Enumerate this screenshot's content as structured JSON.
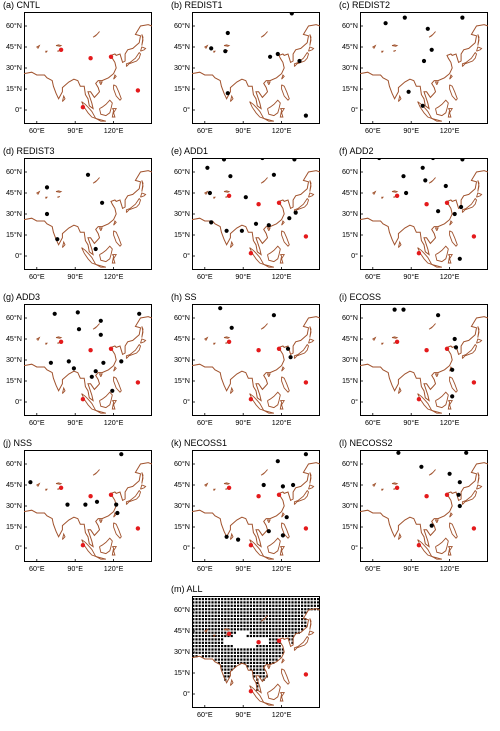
{
  "axes": {
    "lat_labels": [
      "60°N",
      "45°N",
      "30°N",
      "15°N",
      "0°"
    ],
    "lon_labels": [
      "60°E",
      "90°E",
      "120°E"
    ]
  },
  "colors": {
    "coast": "#a0522d",
    "red_station": "#e41a1c",
    "black_station": "#000000",
    "grid_marker": "#000000"
  },
  "red_stations": [
    [
      79,
      43
    ],
    [
      102,
      37
    ],
    [
      118,
      38
    ],
    [
      139,
      14
    ],
    [
      96,
      2
    ]
  ],
  "panels": [
    {
      "id": "a",
      "label": "(a) CNTL",
      "black": [],
      "red": true
    },
    {
      "id": "b",
      "label": "(b) REDIST1",
      "black": [
        [
          128,
          69
        ],
        [
          78,
          55
        ],
        [
          65,
          44
        ],
        [
          76,
          42
        ],
        [
          111,
          38
        ],
        [
          117,
          40
        ],
        [
          134,
          35
        ],
        [
          78,
          12
        ],
        [
          139,
          -4
        ]
      ],
      "red": false
    },
    {
      "id": "c",
      "label": "(c) REDIST2",
      "black": [
        [
          70,
          62
        ],
        [
          85,
          66
        ],
        [
          130,
          66
        ],
        [
          103,
          58
        ],
        [
          106,
          43
        ],
        [
          100,
          35
        ],
        [
          88,
          13
        ],
        [
          99,
          3
        ]
      ],
      "red": false
    },
    {
      "id": "d",
      "label": "(d) REDIST3",
      "black": [
        [
          68,
          49
        ],
        [
          100,
          58
        ],
        [
          111,
          38
        ],
        [
          68,
          30
        ],
        [
          76,
          12
        ],
        [
          106,
          5
        ]
      ],
      "red": false
    },
    {
      "id": "e",
      "label": "(e) ADD1",
      "black": [
        [
          75,
          69
        ],
        [
          105,
          70
        ],
        [
          130,
          69
        ],
        [
          62,
          63
        ],
        [
          80,
          57
        ],
        [
          114,
          58
        ],
        [
          64,
          45
        ],
        [
          92,
          42
        ],
        [
          65,
          24
        ],
        [
          77,
          18
        ],
        [
          89,
          18
        ],
        [
          100,
          23
        ],
        [
          110,
          22
        ],
        [
          126,
          27
        ],
        [
          131,
          31
        ]
      ],
      "red": true
    },
    {
      "id": "f",
      "label": "(f) ADD2",
      "black": [
        [
          65,
          70
        ],
        [
          107,
          70
        ],
        [
          130,
          69
        ],
        [
          99,
          63
        ],
        [
          84,
          57
        ],
        [
          101,
          54
        ],
        [
          117,
          50
        ],
        [
          86,
          45
        ],
        [
          111,
          32
        ],
        [
          124,
          30
        ],
        [
          129,
          35
        ],
        [
          128,
          -2
        ]
      ],
      "red": true
    },
    {
      "id": "g",
      "label": "(g) ADD3",
      "black": [
        [
          74,
          63
        ],
        [
          92,
          64
        ],
        [
          110,
          58
        ],
        [
          140,
          63
        ],
        [
          93,
          52
        ],
        [
          110,
          48
        ],
        [
          71,
          28
        ],
        [
          85,
          29
        ],
        [
          89,
          24
        ],
        [
          112,
          28
        ],
        [
          103,
          18
        ],
        [
          106,
          22
        ],
        [
          126,
          29
        ],
        [
          119,
          8
        ]
      ],
      "red": true
    },
    {
      "id": "h",
      "label": "(h) SS",
      "black": [
        [
          72,
          67
        ],
        [
          81,
          53
        ],
        [
          114,
          62
        ],
        [
          125,
          38
        ],
        [
          127,
          32
        ]
      ],
      "red": true
    },
    {
      "id": "i",
      "label": "(i) ECOSS",
      "black": [
        [
          77,
          66
        ],
        [
          84,
          66
        ],
        [
          111,
          62
        ],
        [
          124,
          45
        ],
        [
          125,
          39
        ],
        [
          122,
          23
        ],
        [
          122,
          4
        ]
      ],
      "red": true
    },
    {
      "id": "j",
      "label": "(j) NSS",
      "black": [
        [
          126,
          67
        ],
        [
          55,
          47
        ],
        [
          84,
          31
        ],
        [
          98,
          31
        ],
        [
          107,
          33
        ],
        [
          123,
          25
        ],
        [
          122,
          31
        ]
      ],
      "red": true
    },
    {
      "id": "k",
      "label": "(k) NECOSS1",
      "black": [
        [
          139,
          67
        ],
        [
          117,
          62
        ],
        [
          106,
          45
        ],
        [
          121,
          44
        ],
        [
          129,
          45
        ],
        [
          124,
          22
        ],
        [
          77,
          8
        ],
        [
          86,
          6
        ],
        [
          110,
          12
        ],
        [
          121,
          9
        ]
      ],
      "red": true
    },
    {
      "id": "l",
      "label": "(l) NECOSS2",
      "black": [
        [
          80,
          68
        ],
        [
          133,
          68
        ],
        [
          98,
          58
        ],
        [
          120,
          53
        ],
        [
          128,
          47
        ],
        [
          127,
          38
        ],
        [
          128,
          30
        ],
        [
          106,
          16
        ]
      ],
      "red": true
    },
    {
      "id": "m",
      "label": "(m) ALL",
      "black": [],
      "red": true,
      "grid": true
    }
  ]
}
